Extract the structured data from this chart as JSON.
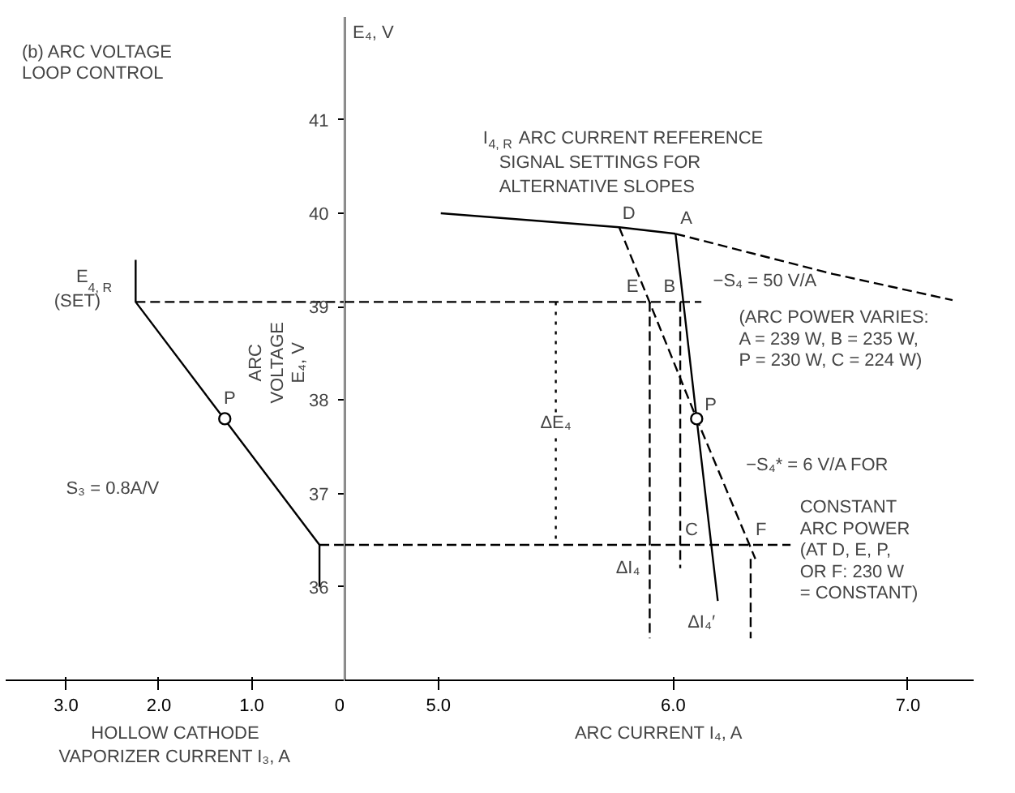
{
  "chart_data": [
    {
      "type": "line",
      "title": "(b) ARC VOLTAGE\nLOOP CONTROL",
      "xlabel": "HOLLOW CATHODE\nVAPORIZER CURRENT I₃, A",
      "xlim": [
        3.65,
        0
      ],
      "xticks": [
        {
          "value": 3,
          "label": "3.0"
        },
        {
          "value": 2,
          "label": "2.0"
        },
        {
          "value": 1,
          "label": "1.0"
        },
        0
      ],
      "ylim": [
        35,
        42.1
      ],
      "yticks": [
        36,
        37,
        38,
        39,
        40,
        41
      ],
      "series": [
        {
          "color": "#000000",
          "line_style": "solid",
          "x": [
            2.25,
            2.25,
            0.27,
            0.27
          ],
          "values": [
            39.5,
            39.05,
            36.45,
            36.0
          ]
        },
        {
          "color": "#000000",
          "line_style": "dashed",
          "x": [
            2.25,
            0
          ],
          "values": [
            39.05,
            39.05
          ]
        },
        {
          "color": "#000000",
          "line_style": "dashed",
          "x": [
            0.27,
            0
          ],
          "values": [
            36.45,
            36.45
          ]
        },
        {
          "type": "scatter",
          "color": "#000000",
          "marker": "circle",
          "x": [
            1.29
          ],
          "values": [
            37.8
          ]
        }
      ],
      "annotations": [
        "ARC\nVOLTAGE\nE₄, V",
        "S₃ = 0.8A/V",
        {
          "text": "P",
          "x": 1.29,
          "y": 37.8
        },
        {
          "text": "E$_{4, R}$\n(SET)",
          "x": 2.25,
          "y": 39.05
        }
      ]
    },
    {
      "type": "line",
      "xlabel": "ARC CURRENT I₄, A",
      "ylabel": "E₄, V",
      "tick_labels": "x",
      "xlim": [
        4.6,
        7.28
      ],
      "xticks": [
        {
          "value": 5,
          "label": "5.0"
        },
        {
          "value": 6,
          "label": "6.0"
        },
        {
          "value": 7,
          "label": "7.0"
        }
      ],
      "ylim": [
        35,
        42.1
      ],
      "yticks": [
        36,
        37,
        38,
        39,
        40,
        41
      ],
      "series": [
        {
          "color": "#000000",
          "line_style": "solid",
          "x": [
            5.01,
            5.77,
            6.01
          ],
          "values": [
            40.0,
            39.85,
            39.78
          ]
        },
        {
          "color": "#000000",
          "line_style": "dashed",
          "x": [
            6.01,
            6.68,
            7.19
          ],
          "values": [
            39.78,
            39.35,
            39.07
          ]
        },
        {
          "color": "#000000",
          "line_style": "solid",
          "x": [
            6.01,
            6.1,
            6.19
          ],
          "values": [
            39.78,
            37.8,
            35.85
          ]
        },
        {
          "color": "#000000",
          "line_style": "dashed",
          "x": [
            5.77,
            6.1,
            6.35
          ],
          "values": [
            39.85,
            37.8,
            36.3
          ]
        },
        {
          "color": "#000000",
          "line_style": "dashed",
          "x": [
            4.6,
            6.12
          ],
          "values": [
            39.05,
            39.05
          ]
        },
        {
          "color": "#000000",
          "line_style": "dashed",
          "x": [
            4.6,
            6.5
          ],
          "values": [
            36.45,
            36.45
          ]
        },
        {
          "color": "#000000",
          "line_style": "dashed",
          "x": [
            5.9,
            5.9
          ],
          "values": [
            39.05,
            35.45
          ]
        },
        {
          "color": "#000000",
          "line_style": "dashed",
          "x": [
            6.03,
            6.03
          ],
          "values": [
            39.05,
            36.2
          ]
        },
        {
          "color": "#000000",
          "line_style": "dashed",
          "x": [
            6.33,
            6.33
          ],
          "values": [
            36.3,
            35.45
          ]
        },
        {
          "color": "#000000",
          "line_style": "dotted",
          "x": [
            5.5,
            5.5
          ],
          "values": [
            39.05,
            36.45
          ]
        },
        {
          "type": "scatter",
          "color": "#000000",
          "marker": "circle",
          "x": [
            6.1
          ],
          "values": [
            37.8
          ]
        }
      ],
      "annotations": [
        "I$_{4, R}$ ARC CURRENT REFERENCE\n   SIGNAL SETTINGS FOR\n   ALTERNATIVE SLOPES",
        "−S₄ = 50 V/A",
        "(ARC POWER VARIES:\nA = 239 W, B = 235 W,\nP = 230 W, C = 224 W)",
        "−S₄* = 6 V/A FOR",
        "CONSTANT\nARC POWER\n(AT D, E, P,\nOR F: 230 W\n= CONSTANT)",
        {
          "text": "A",
          "x": 6.01,
          "y": 39.78
        },
        {
          "text": "D",
          "x": 5.77,
          "y": 39.85
        },
        {
          "text": "E",
          "x": 5.9,
          "y": 39.05
        },
        {
          "text": "B",
          "x": 6.03,
          "y": 39.05
        },
        {
          "text": "C",
          "x": 6.03,
          "y": 36.45
        },
        {
          "text": "F",
          "x": 6.33,
          "y": 36.45
        },
        {
          "text": "P",
          "x": 6.1,
          "y": 37.8
        },
        {
          "text": "ΔE₄",
          "x": 5.5,
          "y": 37.75
        },
        {
          "text": "ΔI₄",
          "x": 5.9,
          "y": 36.2
        },
        {
          "text": "ΔI₄′",
          "x": 6.12,
          "y": 35.62
        }
      ]
    }
  ]
}
